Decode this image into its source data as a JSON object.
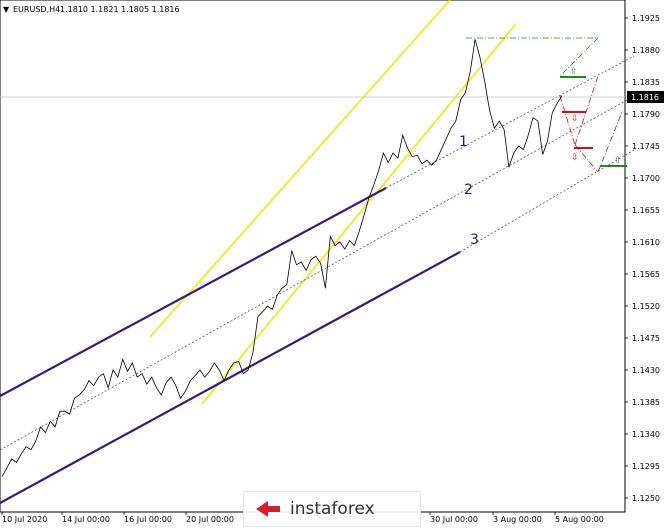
{
  "header": {
    "symbol": "EURUSD,H4",
    "ohlc": "1.1810 1.1821 1.1805 1.1816"
  },
  "price_marker": "1.1816",
  "watermark": {
    "text": "instaforex"
  },
  "colors": {
    "price_line": "#000000",
    "channel_purple": "#3a1a78",
    "channel_yellow": "#f5e83a",
    "dotted_line": "#555555",
    "green": "#1e8a1e",
    "red": "#d01010",
    "axis_bg": "#ffffff"
  },
  "chart_data": {
    "type": "line",
    "title": "EURUSD,H4",
    "x_tick_labels": [
      "10 Jul 2020",
      "14 Jul 00:00",
      "16 Jul 00:00",
      "20 Jul 00:00",
      "30 Jul 00:00",
      "3 Aug 00:00",
      "5 Aug 00:00"
    ],
    "y_tick_labels": [
      "1.1925",
      "1.1880",
      "1.1835",
      "1.1790",
      "1.1745",
      "1.1700",
      "1.1655",
      "1.1610",
      "1.1565",
      "1.1520",
      "1.1475",
      "1.1430",
      "1.1385",
      "1.1340",
      "1.1295",
      "1.1250"
    ],
    "ylim": [
      1.124,
      1.195
    ],
    "grid": false,
    "series": [
      {
        "values": [
          1.128,
          1.1292,
          1.1305,
          1.13,
          1.1312,
          1.1322,
          1.1318,
          1.133,
          1.135,
          1.1342,
          1.1358,
          1.135,
          1.1372,
          1.1372,
          1.1368,
          1.139,
          1.1395,
          1.1402,
          1.1415,
          1.1408,
          1.142,
          1.1425,
          1.1405,
          1.143,
          1.142,
          1.1445,
          1.1428,
          1.144,
          1.142,
          1.1425,
          1.141,
          1.142,
          1.1405,
          1.1395,
          1.1412,
          1.142,
          1.1408,
          1.139,
          1.14,
          1.1415,
          1.1422,
          1.143,
          1.142,
          1.1428,
          1.144,
          1.143,
          1.1415,
          1.143,
          1.144,
          1.1442,
          1.1425,
          1.143,
          1.1455,
          1.1505,
          1.1512,
          1.152,
          1.1515,
          1.1535,
          1.1545,
          1.155,
          1.1598,
          1.1578,
          1.1582,
          1.157,
          1.1585,
          1.159,
          1.158,
          1.1545,
          1.1618,
          1.1605,
          1.161,
          1.16,
          1.1612,
          1.1605,
          1.1625,
          1.1648,
          1.1672,
          1.169,
          1.171,
          1.1735,
          1.1722,
          1.1735,
          1.1728,
          1.176,
          1.1742,
          1.173,
          1.1732,
          1.172,
          1.1725,
          1.1718,
          1.1725,
          1.174,
          1.1755,
          1.177,
          1.178,
          1.181,
          1.182,
          1.185,
          1.1895,
          1.187,
          1.1835,
          1.1795,
          1.177,
          1.178,
          1.1768,
          1.1715,
          1.1735,
          1.1745,
          1.174,
          1.176,
          1.1785,
          1.178,
          1.1733,
          1.1752,
          1.1792,
          1.1805,
          1.1816
        ]
      }
    ],
    "annotations": [
      {
        "label": "1"
      },
      {
        "label": "2"
      },
      {
        "label": "3"
      }
    ]
  }
}
